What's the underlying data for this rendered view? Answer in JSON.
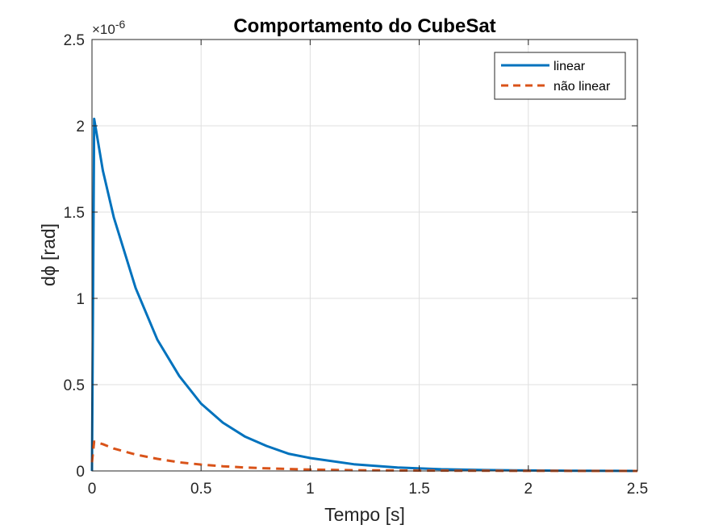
{
  "chart_data": {
    "type": "line",
    "title": "Comportamento do CubeSat",
    "xlabel": "Tempo [s]",
    "ylabel": "dϕ [rad]",
    "xlim": [
      0,
      2.5
    ],
    "ylim": [
      0,
      2.5e-06
    ],
    "y_exponent_label": "×10",
    "y_exponent_power": "-6",
    "x_ticks": [
      0,
      0.5,
      1,
      1.5,
      2,
      2.5
    ],
    "x_tick_labels": [
      "0",
      "0.5",
      "1",
      "1.5",
      "2",
      "2.5"
    ],
    "y_ticks": [
      0,
      0.5,
      1,
      1.5,
      2,
      2.5
    ],
    "y_tick_labels": [
      "0",
      "0.5",
      "1",
      "1.5",
      "2",
      "2.5"
    ],
    "y_tick_scale": 1e-06,
    "grid": true,
    "legend_position": "top-right",
    "series": [
      {
        "name": "linear",
        "color": "#0072BD",
        "style": "solid",
        "x": [
          0,
          0.01,
          0.05,
          0.1,
          0.2,
          0.3,
          0.4,
          0.5,
          0.6,
          0.7,
          0.8,
          0.9,
          1.0,
          1.2,
          1.4,
          1.6,
          1.8,
          2.0,
          2.2,
          2.5
        ],
        "y": [
          0,
          2.04e-06,
          1.74e-06,
          1.47e-06,
          1.06e-06,
          7.6e-07,
          5.5e-07,
          3.9e-07,
          2.8e-07,
          2e-07,
          1.45e-07,
          1e-07,
          7.5e-08,
          3.9e-08,
          2e-08,
          1e-08,
          5e-09,
          3e-09,
          1e-09,
          0.0
        ]
      },
      {
        "name": "não linear",
        "color": "#D95319",
        "style": "dashed",
        "x": [
          0,
          0.01,
          0.05,
          0.1,
          0.2,
          0.3,
          0.4,
          0.5,
          0.6,
          0.7,
          0.8,
          1.0,
          1.2,
          1.5,
          2.0,
          2.5
        ],
        "y": [
          5e-08,
          1.7e-07,
          1.55e-07,
          1.3e-07,
          9.5e-08,
          7e-08,
          5e-08,
          3.7e-08,
          2.7e-08,
          2e-08,
          1.5e-08,
          8e-09,
          4e-09,
          2e-09,
          5e-10,
          0.0
        ]
      }
    ]
  }
}
